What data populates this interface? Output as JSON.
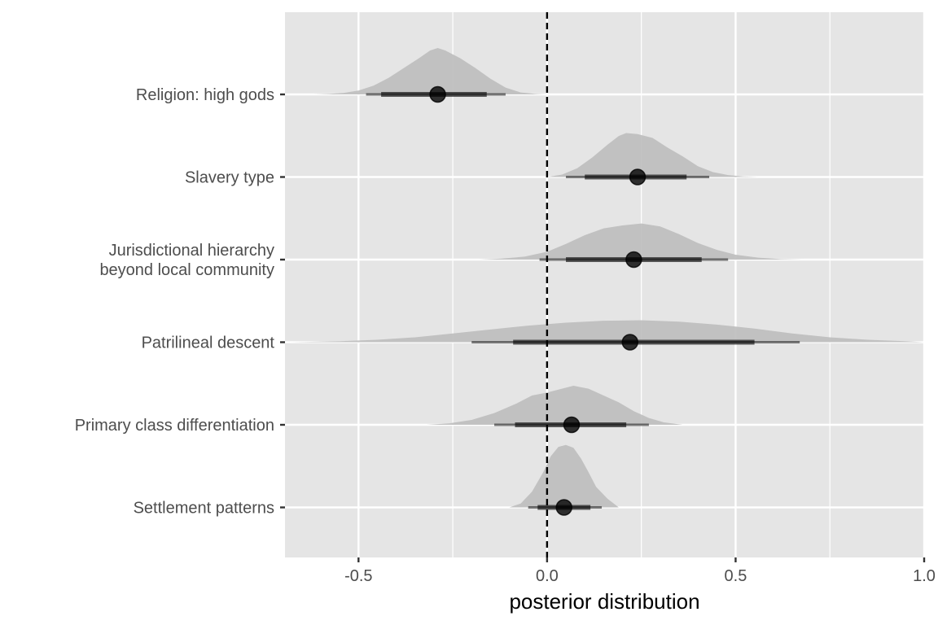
{
  "chart_data": {
    "type": "halfeye",
    "xlabel": "posterior distribution",
    "ylabel": "",
    "xlim": [
      -0.695,
      1.0
    ],
    "x_ticks": [
      "-0.5",
      "0.0",
      "0.5",
      "1.0"
    ],
    "x_tick_values": [
      -0.5,
      0.0,
      0.5,
      1.0
    ],
    "x_minor_ticks": [
      -0.25,
      0.25,
      0.75
    ],
    "grid": true,
    "legend": "none",
    "reference_line": {
      "x": 0,
      "style": "dashed"
    },
    "colors": {
      "panel": "#e5e5e5",
      "grid": "#ffffff",
      "density": "#bcbcbc",
      "interval": "#000000",
      "reference": "#000000"
    },
    "categories": [
      {
        "label_lines": [
          "Religion: high gods"
        ],
        "median": -0.29,
        "interval_66": [
          -0.44,
          -0.16
        ],
        "interval_95": [
          -0.48,
          -0.11
        ],
        "density": [
          [
            -0.62,
            0
          ],
          [
            -0.58,
            0.01
          ],
          [
            -0.54,
            0.03
          ],
          [
            -0.5,
            0.08
          ],
          [
            -0.46,
            0.18
          ],
          [
            -0.42,
            0.34
          ],
          [
            -0.38,
            0.54
          ],
          [
            -0.34,
            0.74
          ],
          [
            -0.31,
            0.9
          ],
          [
            -0.29,
            0.95
          ],
          [
            -0.27,
            0.9
          ],
          [
            -0.23,
            0.74
          ],
          [
            -0.19,
            0.54
          ],
          [
            -0.15,
            0.32
          ],
          [
            -0.11,
            0.14
          ],
          [
            -0.07,
            0.04
          ],
          [
            -0.03,
            0.01
          ],
          [
            0,
            0
          ]
        ]
      },
      {
        "label_lines": [
          "Slavery type"
        ],
        "median": 0.24,
        "interval_66": [
          0.1,
          0.37
        ],
        "interval_95": [
          0.05,
          0.43
        ],
        "density": [
          [
            0,
            0
          ],
          [
            0.04,
            0.05
          ],
          [
            0.08,
            0.18
          ],
          [
            0.12,
            0.4
          ],
          [
            0.16,
            0.66
          ],
          [
            0.19,
            0.84
          ],
          [
            0.21,
            0.9
          ],
          [
            0.24,
            0.88
          ],
          [
            0.28,
            0.8
          ],
          [
            0.32,
            0.6
          ],
          [
            0.36,
            0.42
          ],
          [
            0.4,
            0.22
          ],
          [
            0.44,
            0.1
          ],
          [
            0.48,
            0.04
          ],
          [
            0.52,
            0.01
          ],
          [
            0.56,
            0
          ]
        ]
      },
      {
        "label_lines": [
          "Jurisdictional hierarchy",
          "beyond local community"
        ],
        "median": 0.23,
        "interval_66": [
          0.05,
          0.41
        ],
        "interval_95": [
          -0.02,
          0.48
        ],
        "density": [
          [
            -0.18,
            0
          ],
          [
            -0.12,
            0.02
          ],
          [
            -0.06,
            0.06
          ],
          [
            0,
            0.16
          ],
          [
            0.05,
            0.32
          ],
          [
            0.1,
            0.5
          ],
          [
            0.15,
            0.64
          ],
          [
            0.2,
            0.7
          ],
          [
            0.25,
            0.74
          ],
          [
            0.3,
            0.68
          ],
          [
            0.35,
            0.52
          ],
          [
            0.4,
            0.34
          ],
          [
            0.45,
            0.2
          ],
          [
            0.5,
            0.1
          ],
          [
            0.56,
            0.04
          ],
          [
            0.62,
            0.01
          ],
          [
            0.68,
            0
          ]
        ]
      },
      {
        "label_lines": [
          "Patrilineal descent"
        ],
        "median": 0.22,
        "interval_66": [
          -0.09,
          0.55
        ],
        "interval_95": [
          -0.2,
          0.67
        ],
        "density": [
          [
            -0.68,
            0
          ],
          [
            -0.55,
            0.02
          ],
          [
            -0.45,
            0.05
          ],
          [
            -0.35,
            0.1
          ],
          [
            -0.25,
            0.18
          ],
          [
            -0.15,
            0.26
          ],
          [
            -0.05,
            0.34
          ],
          [
            0.05,
            0.4
          ],
          [
            0.15,
            0.44
          ],
          [
            0.25,
            0.45
          ],
          [
            0.35,
            0.42
          ],
          [
            0.45,
            0.36
          ],
          [
            0.55,
            0.28
          ],
          [
            0.65,
            0.18
          ],
          [
            0.75,
            0.1
          ],
          [
            0.85,
            0.05
          ],
          [
            0.95,
            0.02
          ],
          [
            1.1,
            0
          ]
        ]
      },
      {
        "label_lines": [
          "Primary class differentiation"
        ],
        "median": 0.065,
        "interval_66": [
          -0.085,
          0.21
        ],
        "interval_95": [
          -0.14,
          0.27
        ],
        "density": [
          [
            -0.32,
            0
          ],
          [
            -0.26,
            0.03
          ],
          [
            -0.2,
            0.1
          ],
          [
            -0.14,
            0.24
          ],
          [
            -0.08,
            0.44
          ],
          [
            -0.04,
            0.6
          ],
          [
            0,
            0.66
          ],
          [
            0.03,
            0.72
          ],
          [
            0.07,
            0.8
          ],
          [
            0.11,
            0.74
          ],
          [
            0.15,
            0.6
          ],
          [
            0.19,
            0.46
          ],
          [
            0.23,
            0.28
          ],
          [
            0.27,
            0.14
          ],
          [
            0.31,
            0.05
          ],
          [
            0.36,
            0
          ]
        ]
      },
      {
        "label_lines": [
          "Settlement patterns"
        ],
        "median": 0.045,
        "interval_66": [
          -0.025,
          0.115
        ],
        "interval_95": [
          -0.05,
          0.145
        ],
        "density": [
          [
            -0.1,
            0
          ],
          [
            -0.07,
            0.08
          ],
          [
            -0.04,
            0.32
          ],
          [
            -0.01,
            0.72
          ],
          [
            0.01,
            1.05
          ],
          [
            0.03,
            1.24
          ],
          [
            0.05,
            1.28
          ],
          [
            0.07,
            1.22
          ],
          [
            0.09,
            1.0
          ],
          [
            0.11,
            0.72
          ],
          [
            0.13,
            0.42
          ],
          [
            0.16,
            0.18
          ],
          [
            0.19,
            0
          ]
        ]
      }
    ]
  }
}
